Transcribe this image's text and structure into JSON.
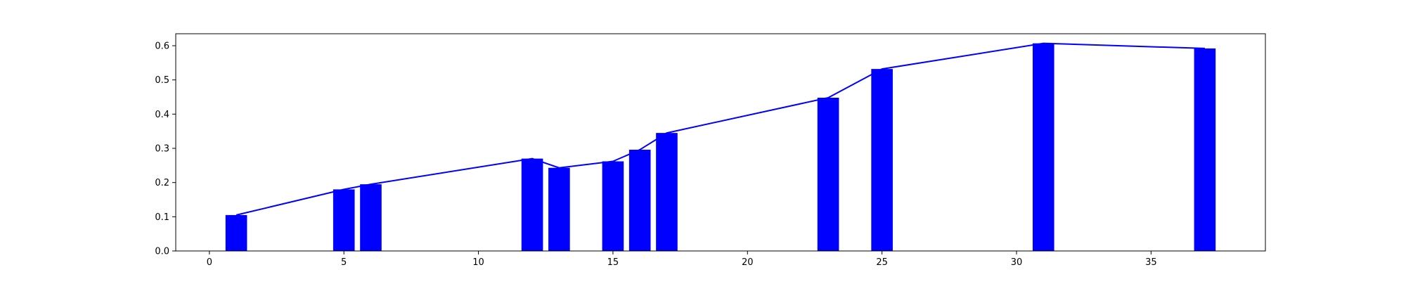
{
  "chart_data": {
    "type": "bar",
    "title": "",
    "xlabel": "",
    "ylabel": "",
    "xlim": [
      -1.25,
      39.25
    ],
    "ylim": [
      0,
      0.635
    ],
    "xticks": [
      "0",
      "5",
      "10",
      "15",
      "20",
      "25",
      "30",
      "35"
    ],
    "yticks": [
      "0.0",
      "0.1",
      "0.2",
      "0.3",
      "0.4",
      "0.5",
      "0.6"
    ],
    "grid": false,
    "bar_width": 0.8,
    "x": [
      1,
      5,
      6,
      12,
      13,
      15,
      16,
      17,
      23,
      25,
      31,
      37
    ],
    "series": [
      {
        "values": [
          0.105,
          0.18,
          0.195,
          0.27,
          0.243,
          0.262,
          0.296,
          0.345,
          0.448,
          0.532,
          0.607,
          0.592
        ],
        "color": "#0000ff",
        "style": "bars with connecting line through bar tops"
      }
    ]
  }
}
